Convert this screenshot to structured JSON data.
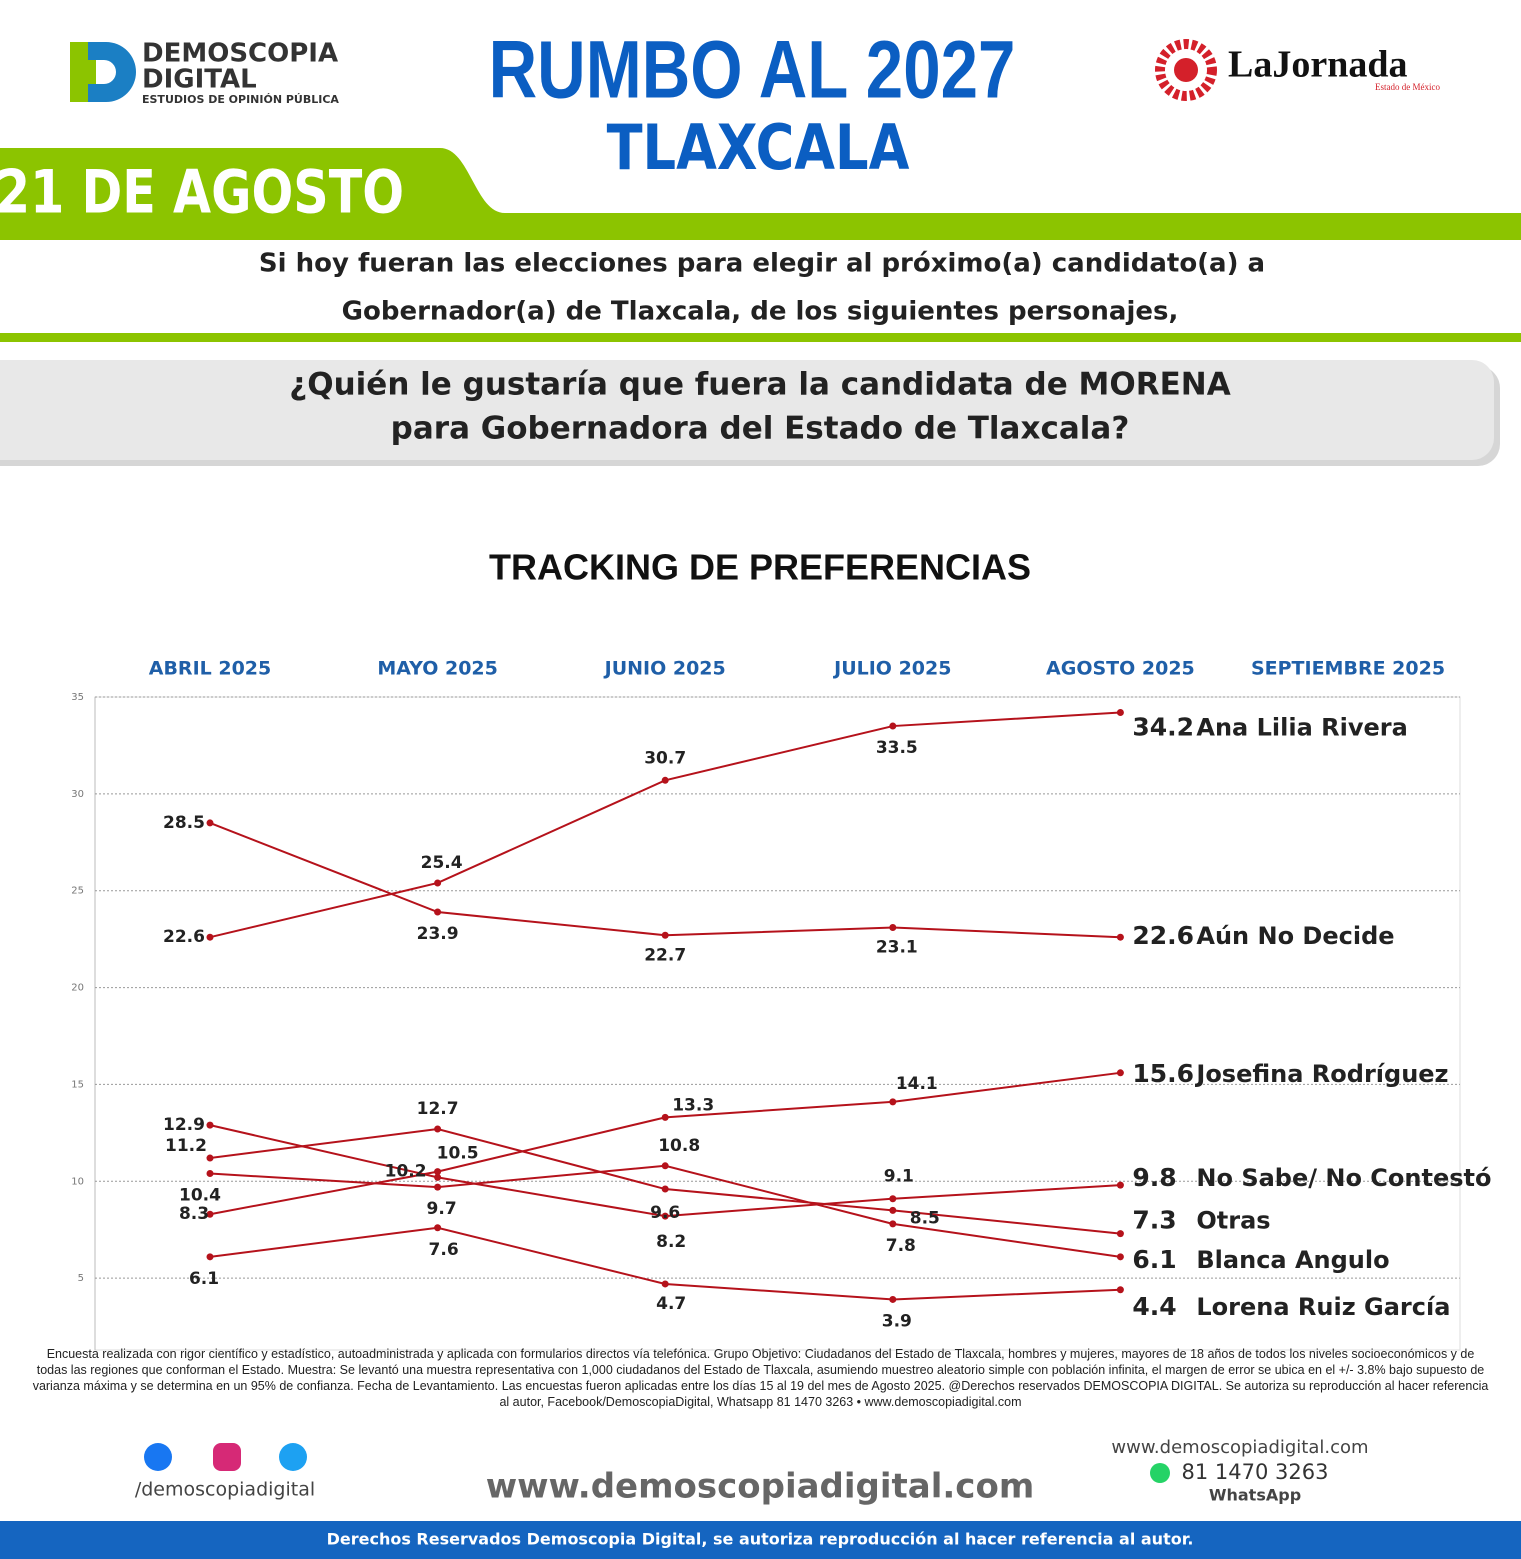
{
  "header": {
    "brand": "DEMOSCOPIA",
    "brand2": "DIGITAL",
    "brand_sub": "ESTUDIOS DE OPINIÓN PÚBLICA",
    "title": "RUMBO AL 2027",
    "subtitle": "TLAXCALA",
    "partner": "LaJornada",
    "partner_sub": "Estado de México",
    "date": "21 DE AGOSTO",
    "intro_1": "Si hoy fueran las elecciones para elegir al próximo(a) candidato(a) a",
    "intro_2": "Gobernador(a) de Tlaxcala, de los siguientes personajes,",
    "question_1": "¿Quién le gustaría que fuera la candidata de MORENA",
    "question_2": "para Gobernadora del Estado de Tlaxcala?"
  },
  "chart_data": {
    "type": "line",
    "title": "TRACKING DE PREFERENCIAS",
    "categories": [
      "ABRIL 2025",
      "MAYO 2025",
      "JUNIO 2025",
      "JULIO 2025",
      "AGOSTO 2025",
      "SEPTIEMBRE 2025"
    ],
    "series": [
      {
        "name": "Ana Lilia Rivera",
        "color": "#b5121b",
        "values": [
          22.6,
          25.4,
          30.7,
          33.5,
          34.2,
          null
        ]
      },
      {
        "name": "Aún No Decide",
        "color": "#b5121b",
        "values": [
          28.5,
          23.9,
          22.7,
          23.1,
          22.6,
          null
        ]
      },
      {
        "name": "Josefina Rodríguez",
        "color": "#b5121b",
        "values": [
          8.3,
          10.5,
          13.3,
          14.1,
          15.6,
          null
        ]
      },
      {
        "name": "No Sabe/ No Contestó",
        "color": "#b5121b",
        "values": [
          12.9,
          10.2,
          8.2,
          9.1,
          9.8,
          null
        ]
      },
      {
        "name": "Otras",
        "color": "#b5121b",
        "values": [
          11.2,
          12.7,
          9.6,
          8.5,
          7.3,
          null
        ]
      },
      {
        "name": "Blanca Angulo",
        "color": "#b5121b",
        "values": [
          10.4,
          9.7,
          10.8,
          7.8,
          6.1,
          null
        ]
      },
      {
        "name": "Lorena Ruiz García",
        "color": "#b5121b",
        "values": [
          6.1,
          7.6,
          4.7,
          3.9,
          4.4,
          null
        ]
      }
    ],
    "ylim": [
      0,
      35
    ],
    "yticks": [
      5,
      10,
      15,
      20,
      25,
      30,
      35
    ],
    "grid": true
  },
  "footer": {
    "note": "Encuesta realizada con rigor científico y estadístico, autoadministrada y aplicada con formularios directos vía telefónica. Grupo Objetivo: Ciudadanos del Estado de Tlaxcala, hombres y mujeres, mayores de 18 años de todos los niveles socioeconómicos y de todas las regiones que conforman el Estado. Muestra: Se levantó una muestra representativa con 1,000 ciudadanos del Estado de Tlaxcala, asumiendo muestreo aleatorio simple con población infinita, el margen de error se ubica en el +/- 3.8% bajo supuesto de varianza máxima y se determina en un 95% de confianza. Fecha de Levantamiento. Las encuestas fueron aplicadas entre los días 15 al 19 del mes de Agosto 2025. @Derechos reservados DEMOSCOPIA DIGITAL. Se autoriza su reproducción al hacer referencia al autor, Facebook/DemoscopiaDigital, Whatsapp 81 1470 3263 • www.demoscopiadigital.com",
    "social": "/demoscopiadigital",
    "website": "www.demoscopiadigital.com",
    "website_small": "www.demoscopiadigital.com",
    "phone": "81 1470 3263",
    "whatsapp": "WhatsApp",
    "rights": "Derechos Reservados Demoscopia Digital, se autoriza reproducción al hacer referencia al autor."
  }
}
